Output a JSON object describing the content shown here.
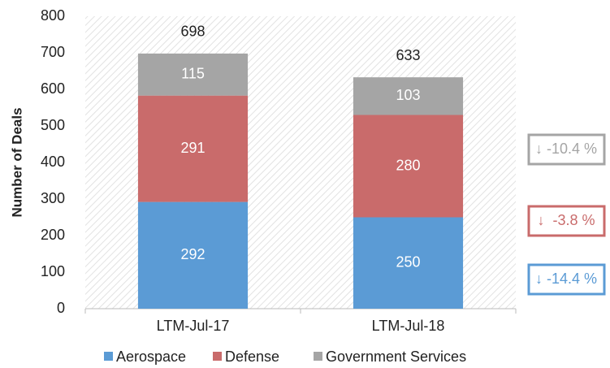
{
  "chart_data": {
    "type": "stacked_bar",
    "y_axis_label": "Number of Deals",
    "categories": [
      "LTM-Jul-17",
      "LTM-Jul-18"
    ],
    "series": [
      {
        "name": "Aerospace",
        "color": "#5b9bd5",
        "values": [
          292,
          250
        ]
      },
      {
        "name": "Defense",
        "color": "#c96b6b",
        "values": [
          291,
          280
        ]
      },
      {
        "name": "Government Services",
        "color": "#a5a5a5",
        "values": [
          115,
          103
        ]
      }
    ],
    "totals": [
      698,
      633
    ],
    "annotations": [
      {
        "text": "↓ -10.4 %",
        "color": "#a5a5a5"
      },
      {
        "text": "↓  -3.8 %",
        "color": "#c96b6b"
      },
      {
        "text": "↓ -14.4 %",
        "color": "#5b9bd5"
      }
    ],
    "ylim": [
      0,
      800
    ],
    "yticks": [
      0,
      100,
      200,
      300,
      400,
      500,
      600,
      700,
      800
    ],
    "grid": false,
    "legend": "bottom"
  }
}
